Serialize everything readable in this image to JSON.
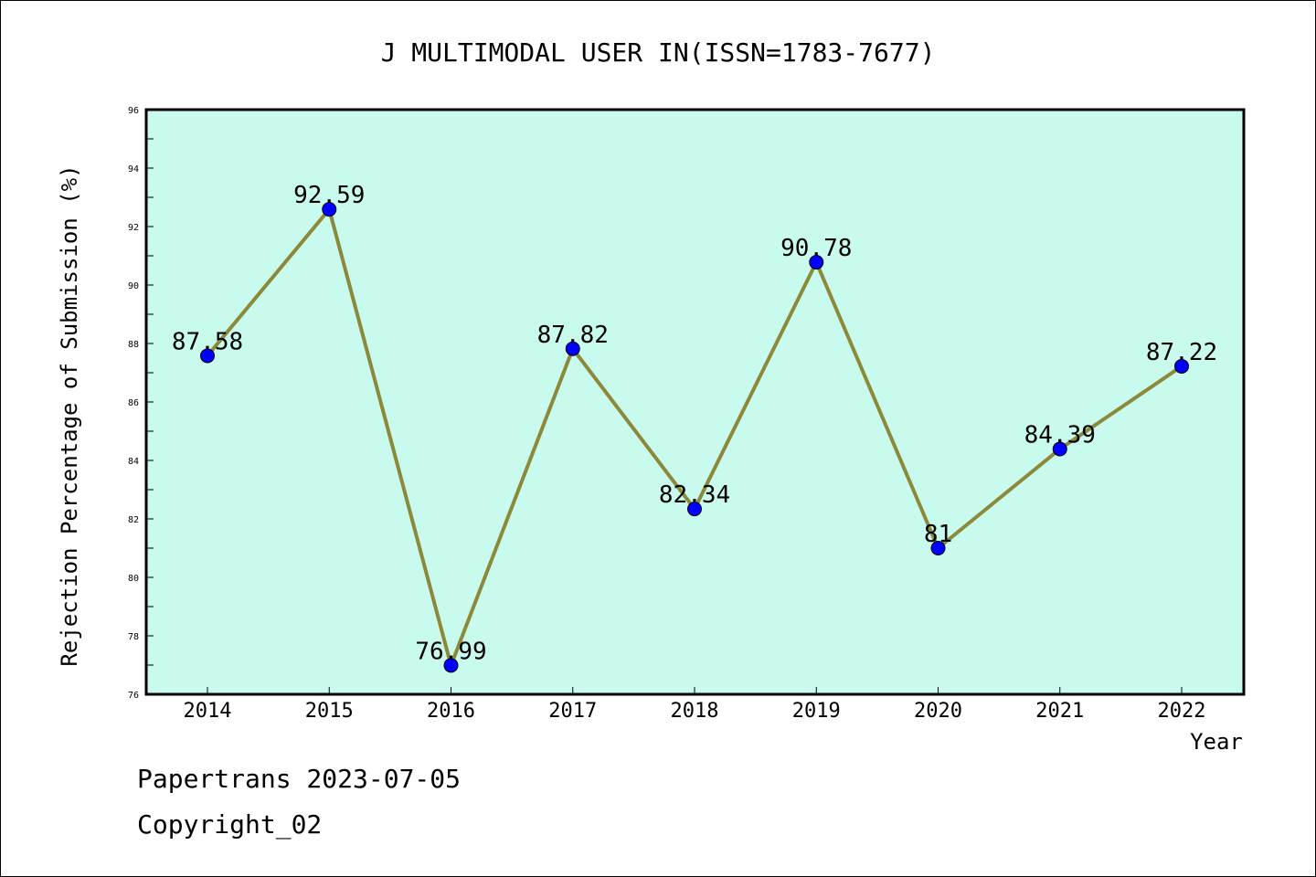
{
  "chart_data": {
    "type": "line",
    "title": "J MULTIMODAL USER IN(ISSN=1783-7677)",
    "xlabel": "Year",
    "ylabel": "Rejection Percentage of Submission (%)",
    "categories": [
      "2014",
      "2015",
      "2016",
      "2017",
      "2018",
      "2019",
      "2020",
      "2021",
      "2022"
    ],
    "values": [
      87.58,
      92.59,
      76.99,
      87.82,
      82.34,
      90.78,
      81,
      84.39,
      87.22
    ],
    "data_labels": [
      "87.58",
      "92.59",
      "76.99",
      "87.82",
      "82.34",
      "90.78",
      "81",
      "84.39",
      "87.22"
    ],
    "ylim": [
      76,
      96
    ],
    "yticks": [
      "76",
      "78",
      "80",
      "82",
      "84",
      "86",
      "88",
      "90",
      "92",
      "94",
      "96"
    ],
    "grid": false,
    "legend": "none",
    "colors": {
      "plot_background": "#c8fbee",
      "line": "#8c8a3a",
      "marker": "#0000ff"
    }
  },
  "footer": {
    "line1": "Papertrans 2023-07-05",
    "line2": "Copyright_02"
  }
}
